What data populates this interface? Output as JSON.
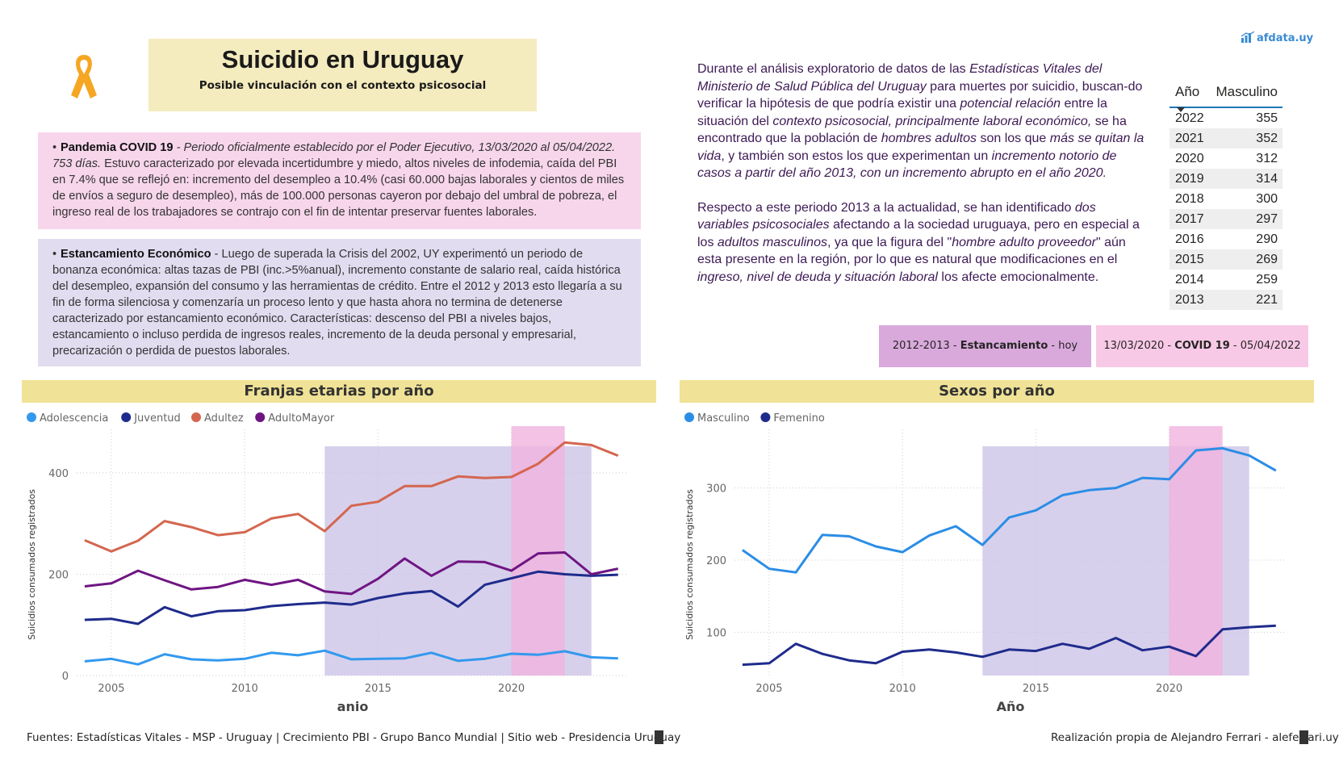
{
  "header": {
    "title": "Suicidio en Uruguay",
    "subtitle": "Posible vinculación con el contexto psicosocial",
    "brand": "afdata.uy",
    "ribbon_color": "#f5a623"
  },
  "covid_box": {
    "heading": "Pandemia COVID 19",
    "italic": " - Periodo oficialmente establecido por el Poder Ejecutivo, 13/03/2020 al 05/04/2022. 753 días.",
    "body": " Estuvo caracterizado por elevada incertidumbre y miedo, altos niveles de infodemia, caída del PBI en 7.4% que se reflejó en: incremento del desempleo a 10.4% (casi 60.000 bajas laborales y cientos de miles de envíos a seguro de desempleo), más de 100.000 personas cayeron por debajo del umbral de pobreza, el ingreso real de los trabajadores se contrajo con el fin de intentar preservar fuentes laborales."
  },
  "estancamiento_box": {
    "heading": "Estancamiento Económico",
    "body": " - Luego de superada la Crisis del 2002, UY experimentó un periodo de bonanza económica: altas tazas de PBI (inc.>5%anual), incremento constante de salario real, caída histórica del desempleo, expansión del consumo y las herramientas de crédito. Entre el 2012 y 2013 esto llegaría a su fin de forma silenciosa y comenzaría un proceso lento y que hasta ahora no termina de detenerse caracterizado por estancamiento económico. Características: descenso del PBI a niveles bajos, estancamiento o incluso perdida de ingresos reales, incremento de la deuda personal y empresarial, precarización o perdida de puestos laborales."
  },
  "analysis": {
    "p1": [
      {
        "t": "Durante el análisis exploratorio de datos de las ",
        "i": false
      },
      {
        "t": "Estadísticas Vitales del Ministerio de Salud Pública del Uruguay",
        "i": true
      },
      {
        "t": " para muertes por suicidio, buscan-do verificar la hipótesis de que podría existir una ",
        "i": false
      },
      {
        "t": "potencial relación",
        "i": true
      },
      {
        "t": " entre la situación del ",
        "i": false
      },
      {
        "t": "contexto psicosocial, principalmente laboral económico,",
        "i": true
      },
      {
        "t": " se ha encontrado que la población de ",
        "i": false
      },
      {
        "t": "hombres adultos",
        "i": true
      },
      {
        "t": " son los que ",
        "i": false
      },
      {
        "t": "más se quitan la vida",
        "i": true
      },
      {
        "t": ", y también son estos los que experimentan un ",
        "i": false
      },
      {
        "t": "incremento notorio de casos a partir del año 2013, con un incremento abrupto en el año 2020.",
        "i": true
      }
    ],
    "p2": [
      {
        "t": "Respecto a este periodo 2013 a la actualidad, se han identificado ",
        "i": false
      },
      {
        "t": "dos variables psicosociales",
        "i": true
      },
      {
        "t": " afectando a la sociedad uruguaya, pero en especial a los ",
        "i": false
      },
      {
        "t": "adultos masculinos",
        "i": true
      },
      {
        "t": ", ya que la figura del \"",
        "i": false
      },
      {
        "t": "hombre adulto proveedor",
        "i": true
      },
      {
        "t": "\" aún esta presente en la región, por lo que es natural que modificaciones en el ",
        "i": false
      },
      {
        "t": "ingreso, nivel de deuda y situación laboral",
        "i": true
      },
      {
        "t": " los afecte emocionalmente.",
        "i": false
      }
    ]
  },
  "table": {
    "col_year": "Año",
    "col_value": "Masculino",
    "sort_icon": "sort-down-icon",
    "rows": [
      {
        "year": "2022",
        "value": "355"
      },
      {
        "year": "2021",
        "value": "352"
      },
      {
        "year": "2020",
        "value": "312"
      },
      {
        "year": "2019",
        "value": "314"
      },
      {
        "year": "2018",
        "value": "300"
      },
      {
        "year": "2017",
        "value": "297"
      },
      {
        "year": "2016",
        "value": "290"
      },
      {
        "year": "2015",
        "value": "269"
      },
      {
        "year": "2014",
        "value": "259"
      },
      {
        "year": "2013",
        "value": "221"
      }
    ]
  },
  "legend_boxes": {
    "estancamiento": {
      "pre": "2012-2013 - ",
      "bold": "Estancamiento",
      "post": " - hoy",
      "color": "#d9a9dc"
    },
    "covid": {
      "pre": "13/03/2020 - ",
      "bold": "COVID 19",
      "post": " - 05/04/2022",
      "color": "#f8c9e6"
    }
  },
  "chart_data": [
    {
      "type": "line",
      "title": "Franjas etarias por año",
      "xlabel": "anio",
      "ylabel": "Suicidios consumados registrados",
      "xlim": [
        2003.7,
        2024.4
      ],
      "ylim": [
        0,
        470
      ],
      "xticks": [
        2005,
        2010,
        2015,
        2020
      ],
      "yticks": [
        0,
        200,
        400
      ],
      "legend_position": "top-left",
      "x": [
        2004,
        2005,
        2006,
        2007,
        2008,
        2009,
        2010,
        2011,
        2012,
        2013,
        2014,
        2015,
        2016,
        2017,
        2018,
        2019,
        2020,
        2021,
        2022,
        2023,
        2024
      ],
      "series": [
        {
          "name": "Adolescencia",
          "color": "#3399ee",
          "values": [
            28,
            33,
            22,
            42,
            32,
            30,
            33,
            45,
            40,
            49,
            32,
            33,
            34,
            45,
            29,
            33,
            43,
            41,
            48,
            36,
            34
          ]
        },
        {
          "name": "Juventud",
          "color": "#1f2b8c",
          "values": [
            110,
            112,
            102,
            135,
            117,
            127,
            129,
            137,
            141,
            144,
            140,
            153,
            162,
            167,
            136,
            179,
            192,
            205,
            200,
            197,
            199
          ]
        },
        {
          "name": "Adultez",
          "color": "#d4664f",
          "values": [
            267,
            245,
            266,
            305,
            293,
            277,
            283,
            310,
            319,
            285,
            335,
            343,
            374,
            374,
            393,
            390,
            392,
            418,
            460,
            455,
            434
          ]
        },
        {
          "name": "AdultoMayor",
          "color": "#6f1582",
          "values": [
            176,
            182,
            207,
            188,
            170,
            175,
            189,
            179,
            189,
            166,
            161,
            191,
            231,
            197,
            225,
            224,
            207,
            241,
            243,
            200,
            211
          ]
        }
      ],
      "shaded_ranges": [
        {
          "label": "Estancamiento",
          "from": 2013,
          "to": 2023,
          "color": "#c9c0e6"
        },
        {
          "label": "COVID 19",
          "from": 2020,
          "to": 2022,
          "color": "#f0b3df"
        }
      ]
    },
    {
      "type": "line",
      "title": "Sexos por año",
      "xlabel": "Año",
      "ylabel": "Suicidios consumados registrados",
      "xlim": [
        2003.7,
        2024.4
      ],
      "ylim": [
        40,
        370
      ],
      "xticks": [
        2005,
        2010,
        2015,
        2020
      ],
      "yticks": [
        100,
        200,
        300
      ],
      "legend_position": "top-left",
      "x": [
        2004,
        2005,
        2006,
        2007,
        2008,
        2009,
        2010,
        2011,
        2012,
        2013,
        2014,
        2015,
        2016,
        2017,
        2018,
        2019,
        2020,
        2021,
        2022,
        2023,
        2024
      ],
      "series": [
        {
          "name": "Masculino",
          "color": "#2b8de6",
          "values": [
            214,
            188,
            183,
            235,
            233,
            219,
            211,
            234,
            247,
            221,
            259,
            269,
            290,
            297,
            300,
            314,
            312,
            352,
            355,
            345,
            324
          ]
        },
        {
          "name": "Femenino",
          "color": "#1f2b8c",
          "values": [
            55,
            57,
            84,
            70,
            61,
            57,
            73,
            76,
            72,
            66,
            76,
            74,
            84,
            77,
            92,
            75,
            80,
            67,
            104,
            107,
            109
          ]
        }
      ],
      "shaded_ranges": [
        {
          "label": "Estancamiento",
          "from": 2013,
          "to": 2023,
          "color": "#c9c0e6"
        },
        {
          "label": "COVID 19",
          "from": 2020,
          "to": 2022,
          "color": "#f0b3df"
        }
      ]
    }
  ],
  "footer": {
    "sources": "Fuentes: Estadísticas Vitales - MSP - Uruguay | Crecimiento PBI - Grupo Banco Mundial | Sitio web - Presidencia Uruguay",
    "author": "Realización propia de Alejandro Ferrari - aleferrari.uy"
  }
}
